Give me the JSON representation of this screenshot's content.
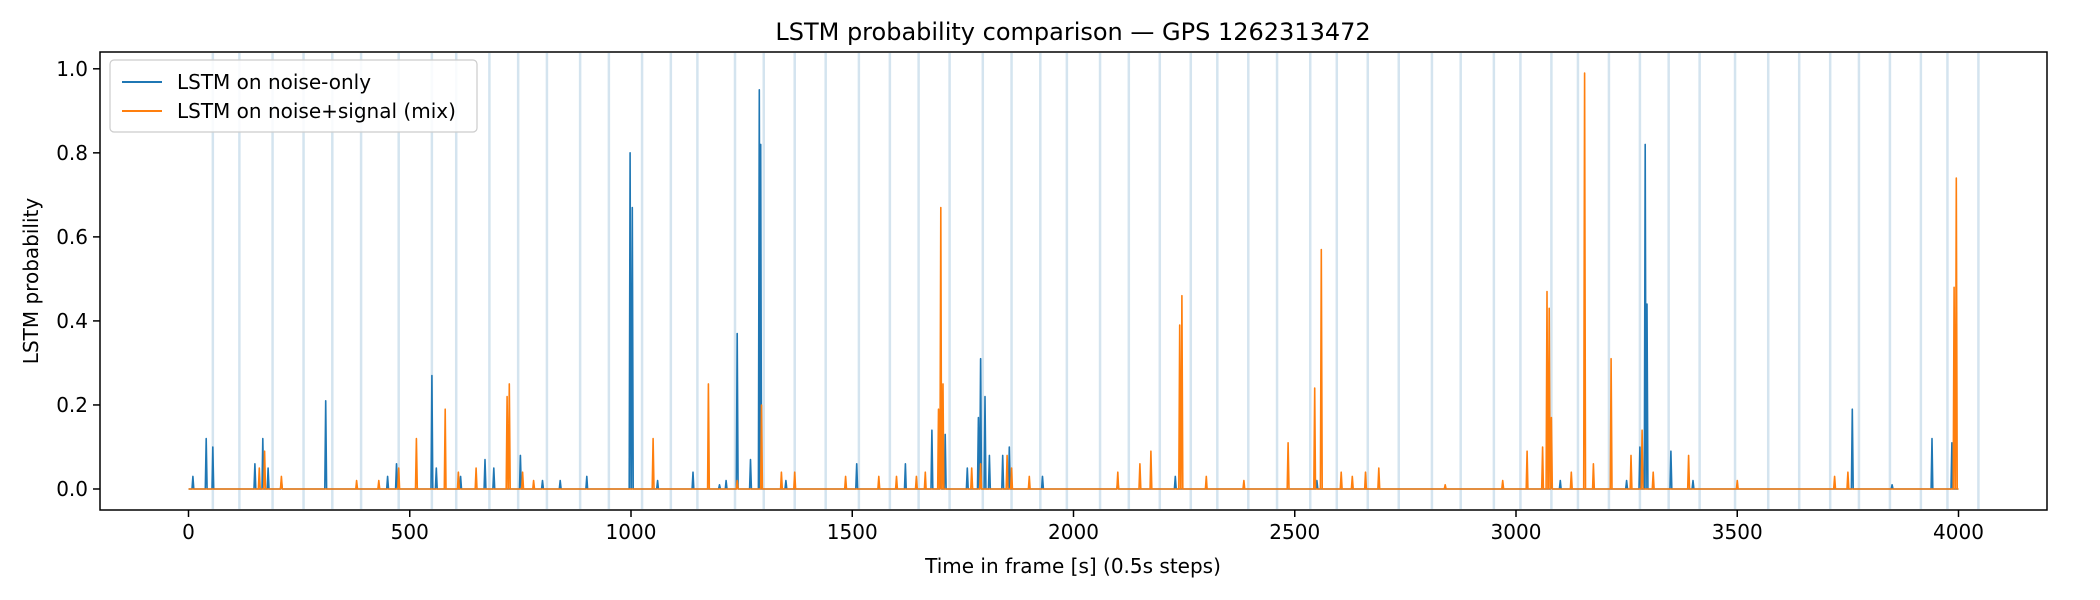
{
  "chart_data": {
    "type": "line",
    "title": "LSTM probability comparison — GPS 1262313472",
    "xlabel": "Time in frame [s] (0.5s steps)",
    "ylabel": "LSTM probability",
    "xlim": [
      -200,
      4200
    ],
    "ylim": [
      -0.05,
      1.04
    ],
    "xticks": [
      0,
      500,
      1000,
      1500,
      2000,
      2500,
      3000,
      3500,
      4000
    ],
    "yticks": [
      0.0,
      0.2,
      0.4,
      0.6,
      0.8,
      1.0
    ],
    "xtick_labels": [
      "0",
      "500",
      "1000",
      "1500",
      "2000",
      "2500",
      "3000",
      "3500",
      "4000"
    ],
    "ytick_labels": [
      "0.0",
      "0.2",
      "0.4",
      "0.6",
      "0.8",
      "1.0"
    ],
    "legend_position": "top-left",
    "grid": false,
    "vertical_markers": [
      55,
      115,
      190,
      260,
      325,
      390,
      475,
      550,
      605,
      680,
      745,
      810,
      885,
      950,
      1025,
      1090,
      1150,
      1235,
      1300,
      1370,
      1440,
      1515,
      1585,
      1650,
      1720,
      1795,
      1860,
      1925,
      1985,
      2060,
      2125,
      2195,
      2265,
      2325,
      2395,
      2460,
      2535,
      2595,
      2665,
      2735,
      2810,
      2875,
      2950,
      3010,
      3080,
      3140,
      3210,
      3280,
      3345,
      3415,
      3495,
      3570,
      3640,
      3710,
      3775,
      3845,
      3915,
      3975,
      4045
    ],
    "series": [
      {
        "name": "LSTM on noise-only",
        "color": "#1f77b4",
        "peaks": [
          [
            10,
            0.03
          ],
          [
            40,
            0.12
          ],
          [
            55,
            0.1
          ],
          [
            150,
            0.06
          ],
          [
            168,
            0.12
          ],
          [
            180,
            0.05
          ],
          [
            210,
            0.02
          ],
          [
            310,
            0.21
          ],
          [
            450,
            0.03
          ],
          [
            470,
            0.06
          ],
          [
            550,
            0.27
          ],
          [
            560,
            0.05
          ],
          [
            615,
            0.03
          ],
          [
            670,
            0.07
          ],
          [
            690,
            0.05
          ],
          [
            750,
            0.08
          ],
          [
            800,
            0.02
          ],
          [
            840,
            0.02
          ],
          [
            900,
            0.03
          ],
          [
            998,
            0.8
          ],
          [
            1003,
            0.67
          ],
          [
            1060,
            0.02
          ],
          [
            1140,
            0.04
          ],
          [
            1200,
            0.01
          ],
          [
            1215,
            0.02
          ],
          [
            1240,
            0.37
          ],
          [
            1270,
            0.07
          ],
          [
            1290,
            0.95
          ],
          [
            1293,
            0.82
          ],
          [
            1350,
            0.02
          ],
          [
            1510,
            0.06
          ],
          [
            1620,
            0.06
          ],
          [
            1680,
            0.14
          ],
          [
            1700,
            0.07
          ],
          [
            1710,
            0.13
          ],
          [
            1760,
            0.05
          ],
          [
            1785,
            0.17
          ],
          [
            1790,
            0.31
          ],
          [
            1800,
            0.22
          ],
          [
            1810,
            0.08
          ],
          [
            1840,
            0.08
          ],
          [
            1855,
            0.1
          ],
          [
            1930,
            0.03
          ],
          [
            2100,
            0.02
          ],
          [
            2230,
            0.03
          ],
          [
            2550,
            0.02
          ],
          [
            3080,
            0.03
          ],
          [
            3100,
            0.02
          ],
          [
            3250,
            0.02
          ],
          [
            3280,
            0.1
          ],
          [
            3292,
            0.82
          ],
          [
            3296,
            0.44
          ],
          [
            3350,
            0.09
          ],
          [
            3400,
            0.02
          ],
          [
            3760,
            0.19
          ],
          [
            3850,
            0.01
          ],
          [
            3940,
            0.12
          ],
          [
            3985,
            0.11
          ]
        ]
      },
      {
        "name": "LSTM on noise+signal (mix)",
        "color": "#ff7f0e",
        "peaks": [
          [
            160,
            0.05
          ],
          [
            172,
            0.09
          ],
          [
            210,
            0.03
          ],
          [
            380,
            0.02
          ],
          [
            430,
            0.02
          ],
          [
            475,
            0.05
          ],
          [
            515,
            0.12
          ],
          [
            580,
            0.19
          ],
          [
            610,
            0.04
          ],
          [
            650,
            0.05
          ],
          [
            720,
            0.22
          ],
          [
            725,
            0.25
          ],
          [
            755,
            0.04
          ],
          [
            780,
            0.02
          ],
          [
            1050,
            0.12
          ],
          [
            1175,
            0.25
          ],
          [
            1240,
            0.02
          ],
          [
            1295,
            0.2
          ],
          [
            1340,
            0.04
          ],
          [
            1370,
            0.04
          ],
          [
            1485,
            0.03
          ],
          [
            1560,
            0.03
          ],
          [
            1600,
            0.03
          ],
          [
            1645,
            0.03
          ],
          [
            1665,
            0.04
          ],
          [
            1695,
            0.19
          ],
          [
            1700,
            0.67
          ],
          [
            1705,
            0.25
          ],
          [
            1770,
            0.05
          ],
          [
            1790,
            0.06
          ],
          [
            1850,
            0.08
          ],
          [
            1860,
            0.05
          ],
          [
            1900,
            0.03
          ],
          [
            2100,
            0.04
          ],
          [
            2150,
            0.06
          ],
          [
            2175,
            0.09
          ],
          [
            2240,
            0.39
          ],
          [
            2245,
            0.46
          ],
          [
            2300,
            0.03
          ],
          [
            2385,
            0.02
          ],
          [
            2485,
            0.11
          ],
          [
            2545,
            0.24
          ],
          [
            2560,
            0.57
          ],
          [
            2605,
            0.04
          ],
          [
            2630,
            0.03
          ],
          [
            2660,
            0.04
          ],
          [
            2690,
            0.05
          ],
          [
            2840,
            0.01
          ],
          [
            2970,
            0.02
          ],
          [
            3025,
            0.09
          ],
          [
            3060,
            0.1
          ],
          [
            3070,
            0.47
          ],
          [
            3075,
            0.43
          ],
          [
            3080,
            0.17
          ],
          [
            3125,
            0.04
          ],
          [
            3155,
            0.99
          ],
          [
            3175,
            0.06
          ],
          [
            3215,
            0.31
          ],
          [
            3260,
            0.08
          ],
          [
            3285,
            0.14
          ],
          [
            3310,
            0.04
          ],
          [
            3390,
            0.08
          ],
          [
            3500,
            0.02
          ],
          [
            3720,
            0.03
          ],
          [
            3750,
            0.04
          ],
          [
            3990,
            0.48
          ],
          [
            3995,
            0.74
          ]
        ]
      }
    ]
  }
}
